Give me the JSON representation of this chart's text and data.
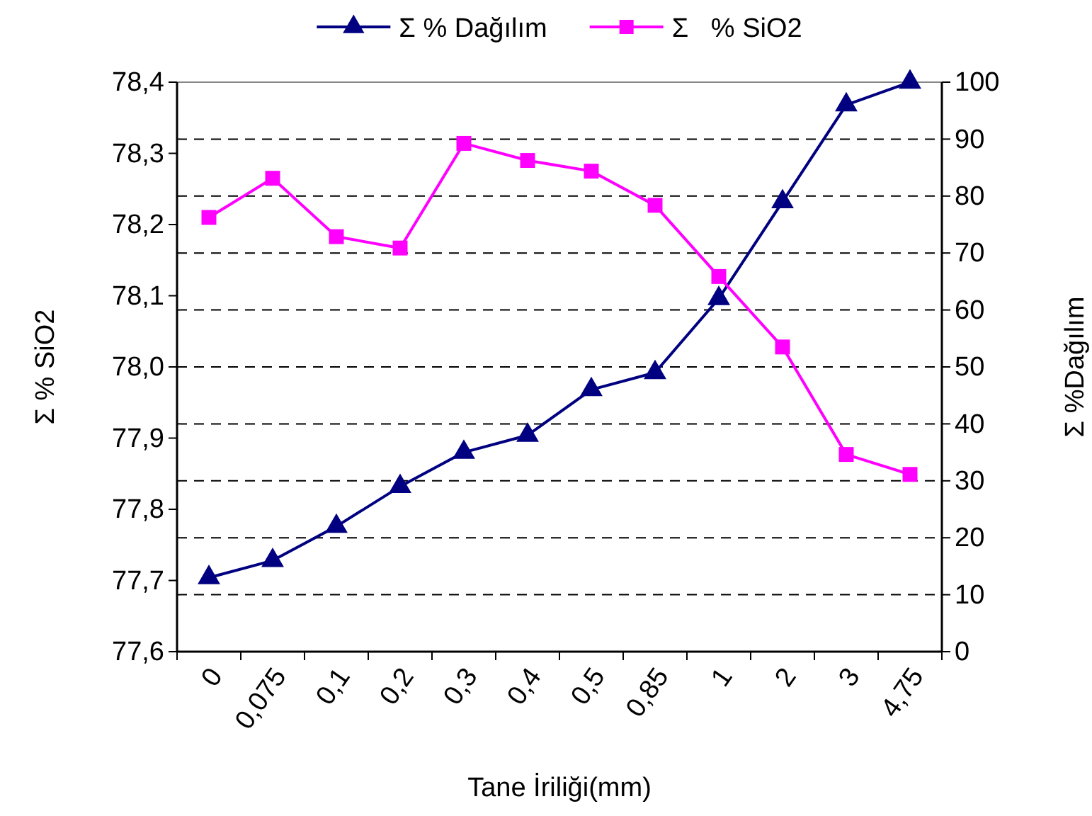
{
  "chart_data": {
    "type": "line",
    "xlabel": "Tane İriliği(mm)",
    "ylabel": "Σ % SiO2",
    "y2label": "Σ %Dağılım",
    "categories": [
      "0",
      "0,075",
      "0,1",
      "0,2",
      "0,3",
      "0,4",
      "0,5",
      "0,85",
      "1",
      "2",
      "3",
      "4,75"
    ],
    "series": [
      {
        "name": "Σ % Dağılım",
        "color": "#000080",
        "axis": "y2",
        "marker": "triangle",
        "values": [
          13,
          16,
          22,
          29,
          35,
          38,
          46,
          49,
          62,
          79,
          96,
          100
        ]
      },
      {
        "name": "Σ   % SiO2",
        "color": "#ff00ff",
        "axis": "y",
        "marker": "square",
        "values": [
          78.21,
          78.265,
          78.183,
          78.167,
          78.314,
          78.29,
          78.275,
          78.227,
          78.127,
          78.028,
          77.877,
          77.849
        ]
      }
    ],
    "ylim": [
      77.6,
      78.4
    ],
    "yticks": [
      {
        "value": 77.6,
        "label": "77,6"
      },
      {
        "value": 77.7,
        "label": "77,7"
      },
      {
        "value": 77.8,
        "label": "77,8"
      },
      {
        "value": 77.9,
        "label": "77,9"
      },
      {
        "value": 78.0,
        "label": "78,0"
      },
      {
        "value": 78.1,
        "label": "78,1"
      },
      {
        "value": 78.2,
        "label": "78,2"
      },
      {
        "value": 78.3,
        "label": "78,3"
      },
      {
        "value": 78.4,
        "label": "78,4"
      }
    ],
    "y2lim": [
      0,
      100
    ],
    "y2ticks": [
      0,
      10,
      20,
      30,
      40,
      50,
      60,
      70,
      80,
      90,
      100
    ],
    "grid": "y2",
    "legend": "top"
  }
}
